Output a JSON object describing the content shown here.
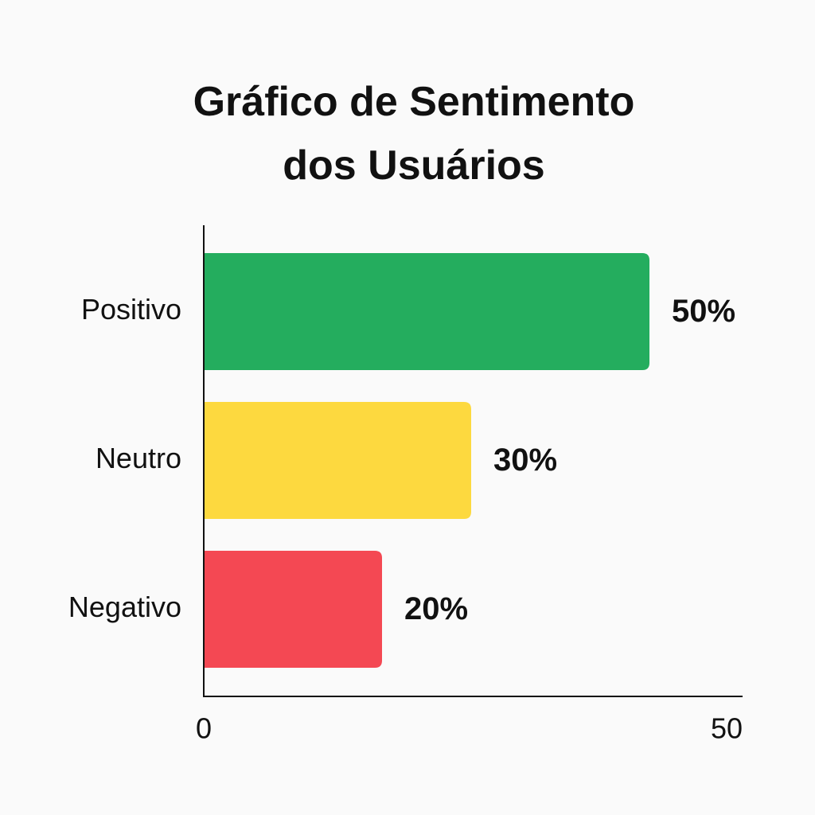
{
  "chart_data": {
    "type": "bar",
    "orientation": "horizontal",
    "title_lines": [
      "Gráfico de Sentimento",
      "dos Usuários"
    ],
    "categories": [
      "Positivo",
      "Neutro",
      "Negativo"
    ],
    "values": [
      50,
      30,
      20
    ],
    "value_labels": [
      "50%",
      "30%",
      "20%"
    ],
    "colors": [
      "#24ad5e",
      "#fdd93f",
      "#f44853"
    ],
    "xlim": [
      0,
      50
    ],
    "x_ticks": [
      "0",
      "50"
    ],
    "xlabel": "",
    "ylabel": "",
    "grid": false,
    "legend": "none"
  }
}
